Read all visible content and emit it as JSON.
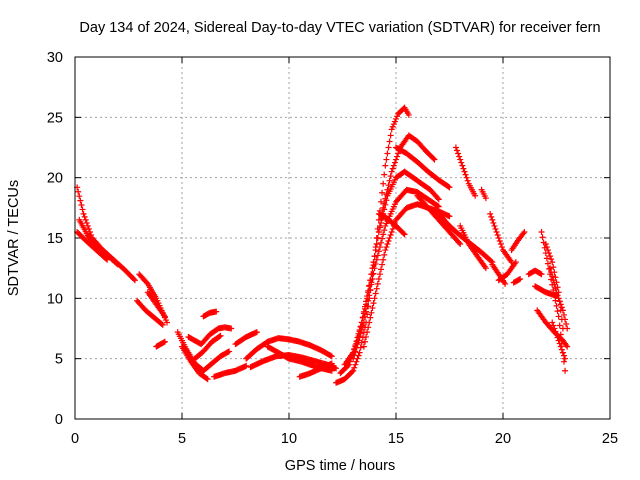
{
  "chart_data": {
    "type": "scatter",
    "title": "Day 134 of 2024, Sidereal Day-to-day VTEC variation (SDTVAR) for receiver fern",
    "xlabel": "GPS time / hours",
    "ylabel": "SDTVAR / TECUs",
    "xlim": [
      0,
      25
    ],
    "ylim": [
      0,
      30
    ],
    "xticks": [
      0,
      5,
      10,
      15,
      20,
      25
    ],
    "yticks": [
      0,
      5,
      10,
      15,
      20,
      25,
      30
    ],
    "xtick_labels": [
      "0",
      "5",
      "10",
      "15",
      "20",
      "25"
    ],
    "ytick_labels": [
      "0",
      "5",
      "10",
      "15",
      "20",
      "25",
      "30"
    ],
    "grid": true,
    "marker": "+",
    "color": "#ff0000",
    "series": [
      {
        "name": "track-1",
        "x": [
          0.1,
          0.4,
          0.8,
          1.3,
          1.8,
          2.3,
          2.8
        ],
        "y": [
          19.2,
          17.0,
          15.0,
          14.0,
          13.2,
          12.4,
          11.5
        ]
      },
      {
        "name": "track-2",
        "x": [
          0.2,
          0.6,
          1.0,
          1.5,
          2.0
        ],
        "y": [
          16.5,
          15.2,
          14.3,
          13.6,
          12.8
        ]
      },
      {
        "name": "track-3",
        "x": [
          0.1,
          0.5,
          1.0,
          1.5
        ],
        "y": [
          15.5,
          14.8,
          14.0,
          13.2
        ]
      },
      {
        "name": "track-4",
        "x": [
          3.0,
          3.4,
          3.8,
          4.1,
          4.3
        ],
        "y": [
          12.0,
          11.2,
          10.0,
          8.8,
          8.0
        ]
      },
      {
        "name": "track-5",
        "x": [
          3.4,
          3.8,
          4.2
        ],
        "y": [
          10.5,
          9.5,
          8.5
        ]
      },
      {
        "name": "track-6",
        "x": [
          2.9,
          3.3,
          3.7,
          4.1
        ],
        "y": [
          9.8,
          9.0,
          8.4,
          7.8
        ]
      },
      {
        "name": "track-7",
        "x": [
          3.8,
          4.2
        ],
        "y": [
          6.0,
          6.4
        ]
      },
      {
        "name": "track-8",
        "x": [
          4.8,
          5.2,
          5.6,
          6.0,
          6.4,
          6.8,
          7.2
        ],
        "y": [
          7.2,
          5.8,
          4.6,
          4.0,
          4.6,
          5.2,
          5.6
        ]
      },
      {
        "name": "track-9",
        "x": [
          5.0,
          5.4,
          5.8,
          6.2
        ],
        "y": [
          6.0,
          4.8,
          3.8,
          3.3
        ]
      },
      {
        "name": "track-10",
        "x": [
          5.3,
          5.6,
          5.9,
          6.3,
          6.7,
          7.0,
          7.3
        ],
        "y": [
          6.8,
          6.5,
          6.2,
          7.0,
          7.5,
          7.6,
          7.5
        ]
      },
      {
        "name": "track-11",
        "x": [
          5.6,
          6.0,
          6.4,
          6.8
        ],
        "y": [
          5.0,
          5.6,
          6.4,
          6.9
        ]
      },
      {
        "name": "track-12",
        "x": [
          6.0,
          6.3,
          6.6
        ],
        "y": [
          8.5,
          8.8,
          8.9
        ]
      },
      {
        "name": "track-13",
        "x": [
          6.5,
          7.0,
          7.5,
          8.0
        ],
        "y": [
          3.5,
          3.8,
          4.0,
          4.4
        ]
      },
      {
        "name": "track-14",
        "x": [
          7.5,
          8.0,
          8.5
        ],
        "y": [
          6.2,
          6.8,
          7.2
        ]
      },
      {
        "name": "track-15",
        "x": [
          8.0,
          8.5,
          9.0,
          9.5,
          10.0,
          10.5,
          11.0,
          11.5,
          12.0
        ],
        "y": [
          5.0,
          5.8,
          6.4,
          6.7,
          6.6,
          6.4,
          6.1,
          5.7,
          5.2
        ]
      },
      {
        "name": "track-16",
        "x": [
          8.2,
          8.8,
          9.4,
          10.0,
          10.6,
          11.2,
          11.8,
          12.2
        ],
        "y": [
          4.3,
          4.8,
          5.2,
          5.3,
          5.1,
          4.8,
          4.5,
          4.2
        ]
      },
      {
        "name": "track-17",
        "x": [
          9.0,
          9.5,
          10.0,
          10.5,
          11.0,
          11.5,
          12.0
        ],
        "y": [
          6.0,
          5.5,
          5.0,
          4.8,
          4.5,
          4.2,
          4.0
        ]
      },
      {
        "name": "track-18",
        "x": [
          10.5,
          11.0,
          11.5,
          12.0
        ],
        "y": [
          3.5,
          3.8,
          4.2,
          4.6
        ]
      },
      {
        "name": "track-19",
        "x": [
          12.2,
          12.6,
          13.0,
          13.3,
          13.6,
          13.9,
          14.2,
          14.5,
          14.8,
          15.1,
          15.4,
          15.6
        ],
        "y": [
          3.0,
          3.3,
          4.0,
          5.5,
          8.0,
          12.0,
          16.5,
          21.0,
          24.0,
          25.3,
          25.8,
          25.2
        ]
      },
      {
        "name": "track-20",
        "x": [
          12.4,
          12.8,
          13.2,
          13.6,
          14.0,
          14.4,
          14.8,
          15.2,
          15.6,
          16.0,
          16.4,
          16.8
        ],
        "y": [
          3.8,
          4.5,
          6.5,
          9.5,
          13.5,
          17.5,
          20.5,
          22.5,
          23.5,
          23.0,
          22.2,
          21.5
        ]
      },
      {
        "name": "track-21",
        "x": [
          12.6,
          13.0,
          13.4,
          13.8,
          14.2,
          14.6,
          15.0,
          15.4,
          15.8,
          16.2,
          16.6,
          17.0
        ],
        "y": [
          4.5,
          5.5,
          8.0,
          11.5,
          15.5,
          18.5,
          20.0,
          20.5,
          20.0,
          19.5,
          19.0,
          18.2
        ]
      },
      {
        "name": "track-22",
        "x": [
          13.0,
          13.5,
          14.0,
          14.5,
          15.0,
          15.5,
          16.0,
          16.5,
          17.0
        ],
        "y": [
          5.0,
          8.0,
          12.5,
          16.0,
          18.0,
          19.0,
          18.8,
          18.2,
          17.6
        ]
      },
      {
        "name": "track-23",
        "x": [
          13.5,
          14.0,
          14.5,
          15.0,
          15.5,
          16.0,
          16.5,
          17.0,
          17.5
        ],
        "y": [
          6.0,
          10.0,
          14.0,
          16.5,
          17.5,
          17.8,
          17.5,
          17.2,
          16.8
        ]
      },
      {
        "name": "track-24",
        "x": [
          15.0,
          15.5,
          16.0,
          16.5,
          17.0,
          17.5
        ],
        "y": [
          22.5,
          22.0,
          21.3,
          20.5,
          19.8,
          19.2
        ]
      },
      {
        "name": "track-25",
        "x": [
          14.2,
          14.6,
          15.0,
          15.4
        ],
        "y": [
          17.0,
          16.6,
          16.0,
          15.3
        ]
      },
      {
        "name": "track-26",
        "x": [
          16.0,
          16.5,
          17.0,
          17.5,
          18.0
        ],
        "y": [
          18.5,
          17.5,
          16.5,
          15.5,
          14.5
        ]
      },
      {
        "name": "track-27",
        "x": [
          17.0,
          17.5,
          18.0,
          18.5,
          19.0,
          19.5
        ],
        "y": [
          17.0,
          16.0,
          15.2,
          14.5,
          13.8,
          13.0
        ]
      },
      {
        "name": "track-28",
        "x": [
          17.8,
          18.1,
          18.4,
          18.7
        ],
        "y": [
          22.5,
          21.0,
          19.5,
          18.5
        ]
      },
      {
        "name": "track-29",
        "x": [
          18.0,
          18.4,
          18.8,
          19.2
        ],
        "y": [
          16.0,
          14.5,
          13.5,
          12.5
        ]
      },
      {
        "name": "track-30",
        "x": [
          19.0,
          19.2
        ],
        "y": [
          19.0,
          18.3
        ]
      },
      {
        "name": "track-31",
        "x": [
          19.4,
          19.7,
          20.0,
          20.4
        ],
        "y": [
          17.0,
          15.5,
          14.0,
          13.0
        ]
      },
      {
        "name": "track-32",
        "x": [
          19.5,
          19.8,
          20.1
        ],
        "y": [
          12.8,
          12.0,
          11.2
        ]
      },
      {
        "name": "track-33",
        "x": [
          19.8,
          20.2,
          20.6
        ],
        "y": [
          11.5,
          12.0,
          13.0
        ]
      },
      {
        "name": "track-34",
        "x": [
          20.4,
          20.7,
          21.0
        ],
        "y": [
          14.0,
          14.8,
          15.5
        ]
      },
      {
        "name": "track-35",
        "x": [
          20.5,
          20.8
        ],
        "y": [
          11.3,
          11.6
        ]
      },
      {
        "name": "track-36",
        "x": [
          21.2,
          21.5,
          21.8
        ],
        "y": [
          12.0,
          12.3,
          12.0
        ]
      },
      {
        "name": "track-37",
        "x": [
          21.6,
          22.0,
          22.4,
          22.8,
          23.0
        ],
        "y": [
          9.0,
          8.0,
          7.2,
          6.5,
          6.0
        ]
      },
      {
        "name": "track-38",
        "x": [
          21.8,
          22.2,
          22.6,
          22.9
        ],
        "y": [
          15.5,
          12.0,
          8.5,
          4.0
        ]
      },
      {
        "name": "track-39",
        "x": [
          22.0,
          22.3,
          22.6,
          22.8
        ],
        "y": [
          14.5,
          13.0,
          10.5,
          7.5
        ]
      },
      {
        "name": "track-40",
        "x": [
          22.2,
          22.5,
          22.8,
          23.0
        ],
        "y": [
          12.5,
          10.5,
          9.0,
          7.5
        ]
      },
      {
        "name": "track-41",
        "x": [
          22.3,
          22.6,
          22.9
        ],
        "y": [
          8.0,
          6.5,
          5.0
        ]
      },
      {
        "name": "track-42",
        "x": [
          21.5,
          22.0,
          22.5
        ],
        "y": [
          11.0,
          10.5,
          10.2
        ]
      }
    ]
  }
}
